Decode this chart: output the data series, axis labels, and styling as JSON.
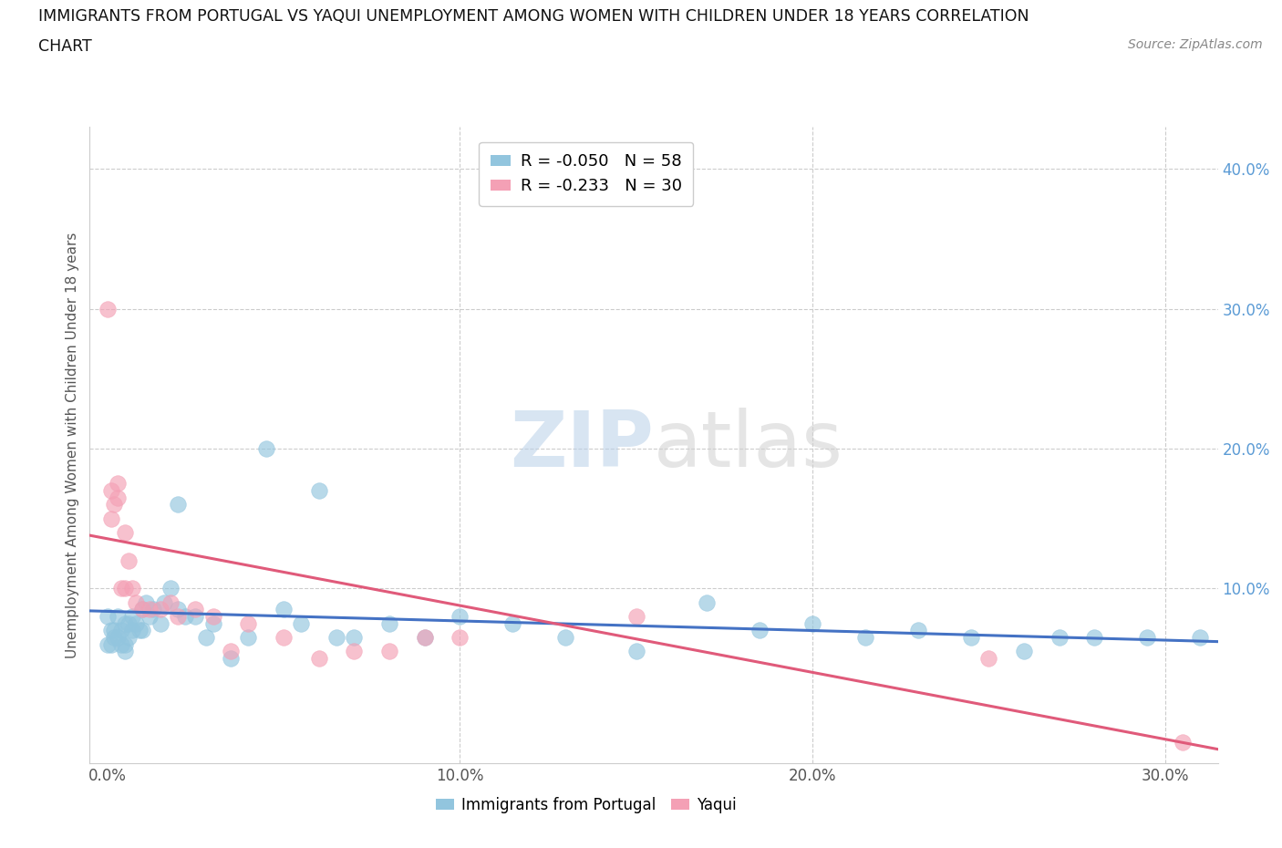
{
  "title_line1": "IMMIGRANTS FROM PORTUGAL VS YAQUI UNEMPLOYMENT AMONG WOMEN WITH CHILDREN UNDER 18 YEARS CORRELATION",
  "title_line2": "CHART",
  "source": "Source: ZipAtlas.com",
  "xlabel_ticks": [
    0.0,
    0.1,
    0.2,
    0.3
  ],
  "ylabel_ticks_right": [
    0.1,
    0.2,
    0.3,
    0.4
  ],
  "ylabel_label": "Unemployment Among Women with Children Under 18 years",
  "xlim": [
    -0.005,
    0.315
  ],
  "ylim": [
    -0.025,
    0.43
  ],
  "blue_R": -0.05,
  "blue_N": 58,
  "pink_R": -0.233,
  "pink_N": 30,
  "blue_color": "#92c5de",
  "pink_color": "#f4a0b5",
  "blue_line_color": "#4472c4",
  "pink_line_color": "#e05a7a",
  "blue_scatter_x": [
    0.0,
    0.0,
    0.001,
    0.001,
    0.002,
    0.002,
    0.003,
    0.003,
    0.004,
    0.004,
    0.005,
    0.005,
    0.006,
    0.006,
    0.007,
    0.007,
    0.008,
    0.009,
    0.01,
    0.01,
    0.011,
    0.012,
    0.013,
    0.015,
    0.016,
    0.018,
    0.02,
    0.02,
    0.022,
    0.025,
    0.028,
    0.03,
    0.035,
    0.04,
    0.045,
    0.05,
    0.055,
    0.06,
    0.065,
    0.07,
    0.08,
    0.09,
    0.1,
    0.115,
    0.13,
    0.15,
    0.17,
    0.185,
    0.2,
    0.215,
    0.23,
    0.245,
    0.26,
    0.27,
    0.28,
    0.295,
    0.31,
    0.005
  ],
  "blue_scatter_y": [
    0.08,
    0.06,
    0.07,
    0.06,
    0.065,
    0.07,
    0.08,
    0.065,
    0.07,
    0.06,
    0.075,
    0.06,
    0.065,
    0.075,
    0.07,
    0.08,
    0.075,
    0.07,
    0.085,
    0.07,
    0.09,
    0.08,
    0.085,
    0.075,
    0.09,
    0.1,
    0.16,
    0.085,
    0.08,
    0.08,
    0.065,
    0.075,
    0.05,
    0.065,
    0.2,
    0.085,
    0.075,
    0.17,
    0.065,
    0.065,
    0.075,
    0.065,
    0.08,
    0.075,
    0.065,
    0.055,
    0.09,
    0.07,
    0.075,
    0.065,
    0.07,
    0.065,
    0.055,
    0.065,
    0.065,
    0.065,
    0.065,
    0.055
  ],
  "pink_scatter_x": [
    0.0,
    0.001,
    0.001,
    0.002,
    0.003,
    0.003,
    0.004,
    0.005,
    0.005,
    0.006,
    0.007,
    0.008,
    0.01,
    0.012,
    0.015,
    0.018,
    0.02,
    0.025,
    0.03,
    0.035,
    0.04,
    0.05,
    0.06,
    0.07,
    0.08,
    0.09,
    0.1,
    0.15,
    0.25,
    0.305
  ],
  "pink_scatter_y": [
    0.3,
    0.17,
    0.15,
    0.16,
    0.165,
    0.175,
    0.1,
    0.14,
    0.1,
    0.12,
    0.1,
    0.09,
    0.085,
    0.085,
    0.085,
    0.09,
    0.08,
    0.085,
    0.08,
    0.055,
    0.075,
    0.065,
    0.05,
    0.055,
    0.055,
    0.065,
    0.065,
    0.08,
    0.05,
    -0.01
  ],
  "blue_trend_x": [
    -0.005,
    0.315
  ],
  "blue_trend_y": [
    0.084,
    0.062
  ],
  "pink_trend_x": [
    -0.005,
    0.315
  ],
  "pink_trend_y": [
    0.138,
    -0.015
  ],
  "watermark_zip": "ZIP",
  "watermark_atlas": "atlas",
  "grid_color": "#cccccc",
  "grid_style": "--",
  "background_color": "#ffffff"
}
